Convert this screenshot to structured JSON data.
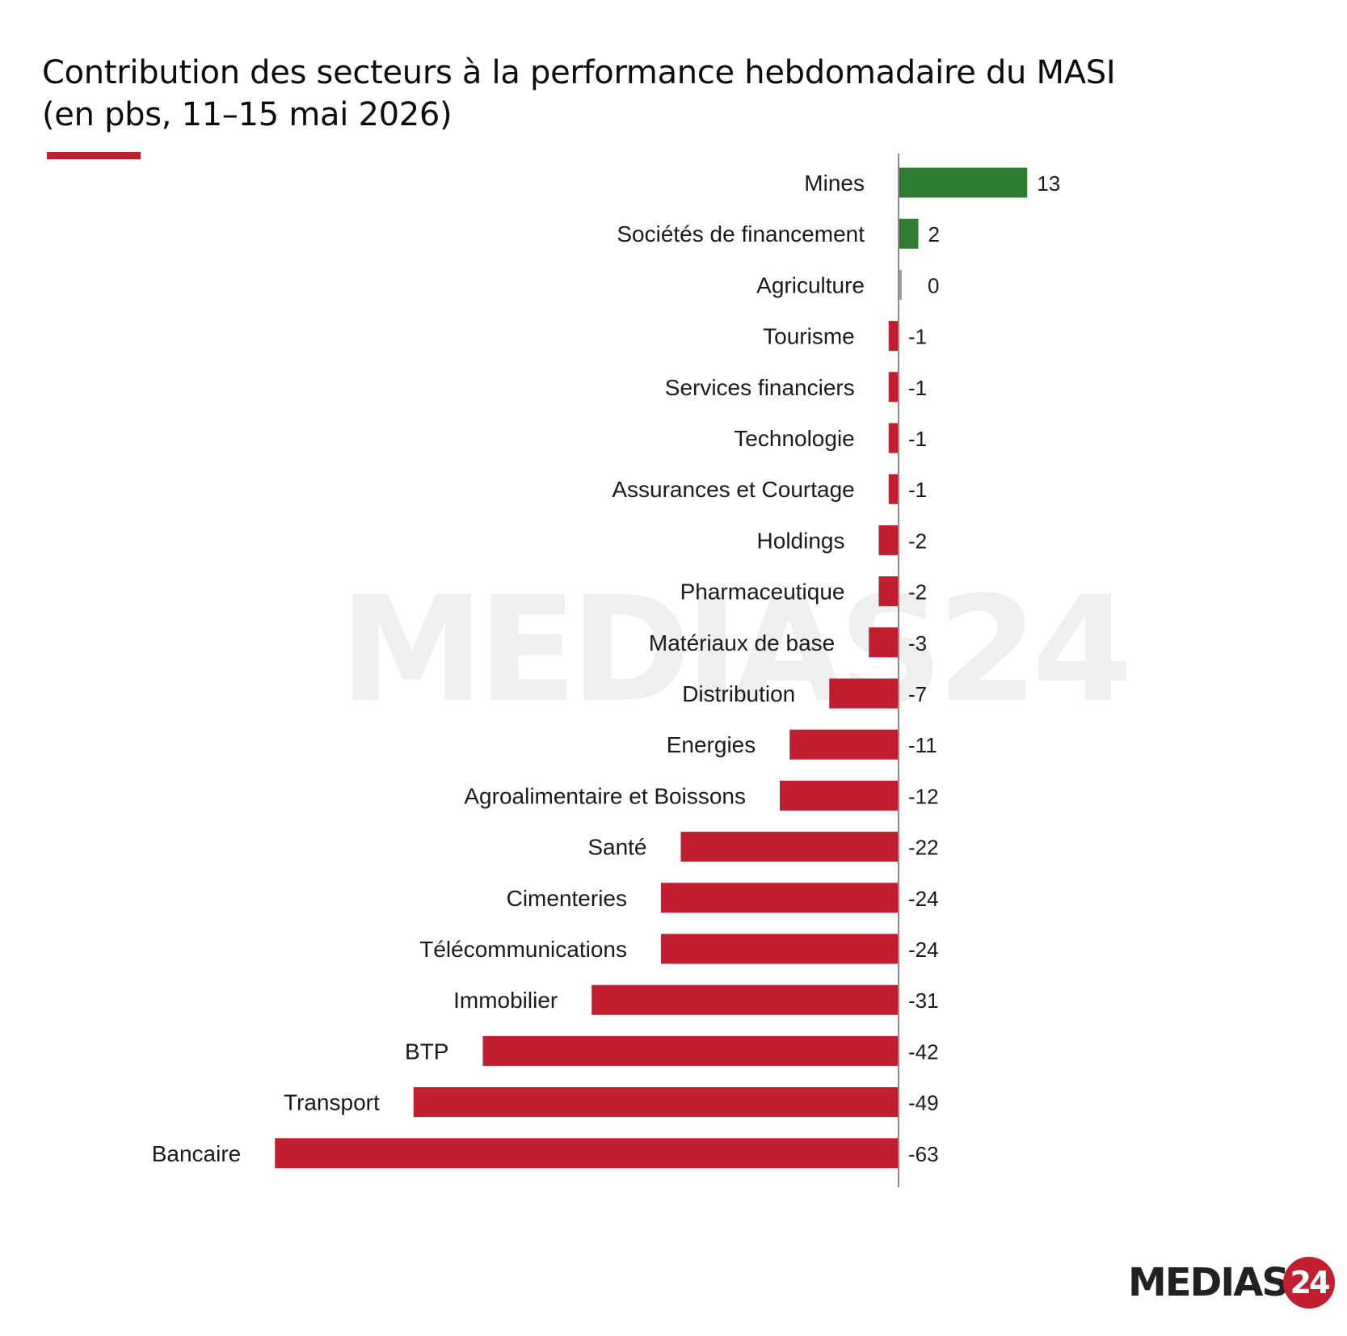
{
  "header": {
    "title_line1": "Contribution des secteurs à la performance hebdomadaire du MASI",
    "title_line2": "(en pbs, 11–15 mai 2026)"
  },
  "colors": {
    "positive": "#2e7d32",
    "negative": "#c11e2f",
    "neutral": "#9e9e9e",
    "accent": "#c11e2f"
  },
  "chart_data": {
    "type": "bar",
    "orientation": "horizontal",
    "title": "Contribution des secteurs à la performance hebdomadaire du MASI",
    "subtitle": "(en pbs, 11–15 mai 2026)",
    "categories": [
      "Mines",
      "Sociétés de financement",
      "Agriculture",
      "Tourisme",
      "Services financiers",
      "Technologie",
      "Assurances et Courtage",
      "Holdings",
      "Pharmaceutique",
      "Matériaux de base",
      "Distribution",
      "Energies",
      "Agroalimentaire et Boissons",
      "Santé",
      "Cimenteries",
      "Télécommunications",
      "Immobilier",
      "BTP",
      "Transport",
      "Bancaire"
    ],
    "values": [
      13,
      2,
      0,
      -1,
      -1,
      -1,
      -1,
      -2,
      -2,
      -3,
      -7,
      -11,
      -12,
      -22,
      -24,
      -24,
      -31,
      -42,
      -49,
      -63
    ],
    "data_labels": [
      "13",
      "2",
      "0",
      "-1",
      "-1",
      "-1",
      "-1",
      "-2",
      "-2",
      "-3",
      "-7",
      "-11",
      "-12",
      "-22",
      "-24",
      "-24",
      "-31",
      "-42",
      "-49",
      "-63"
    ],
    "xlim": [
      -63,
      18
    ],
    "grid": false,
    "legend": "none"
  },
  "watermark": {
    "text": "MEDIAS24"
  },
  "logo": {
    "text": "MEDIAS",
    "badge": "24"
  }
}
